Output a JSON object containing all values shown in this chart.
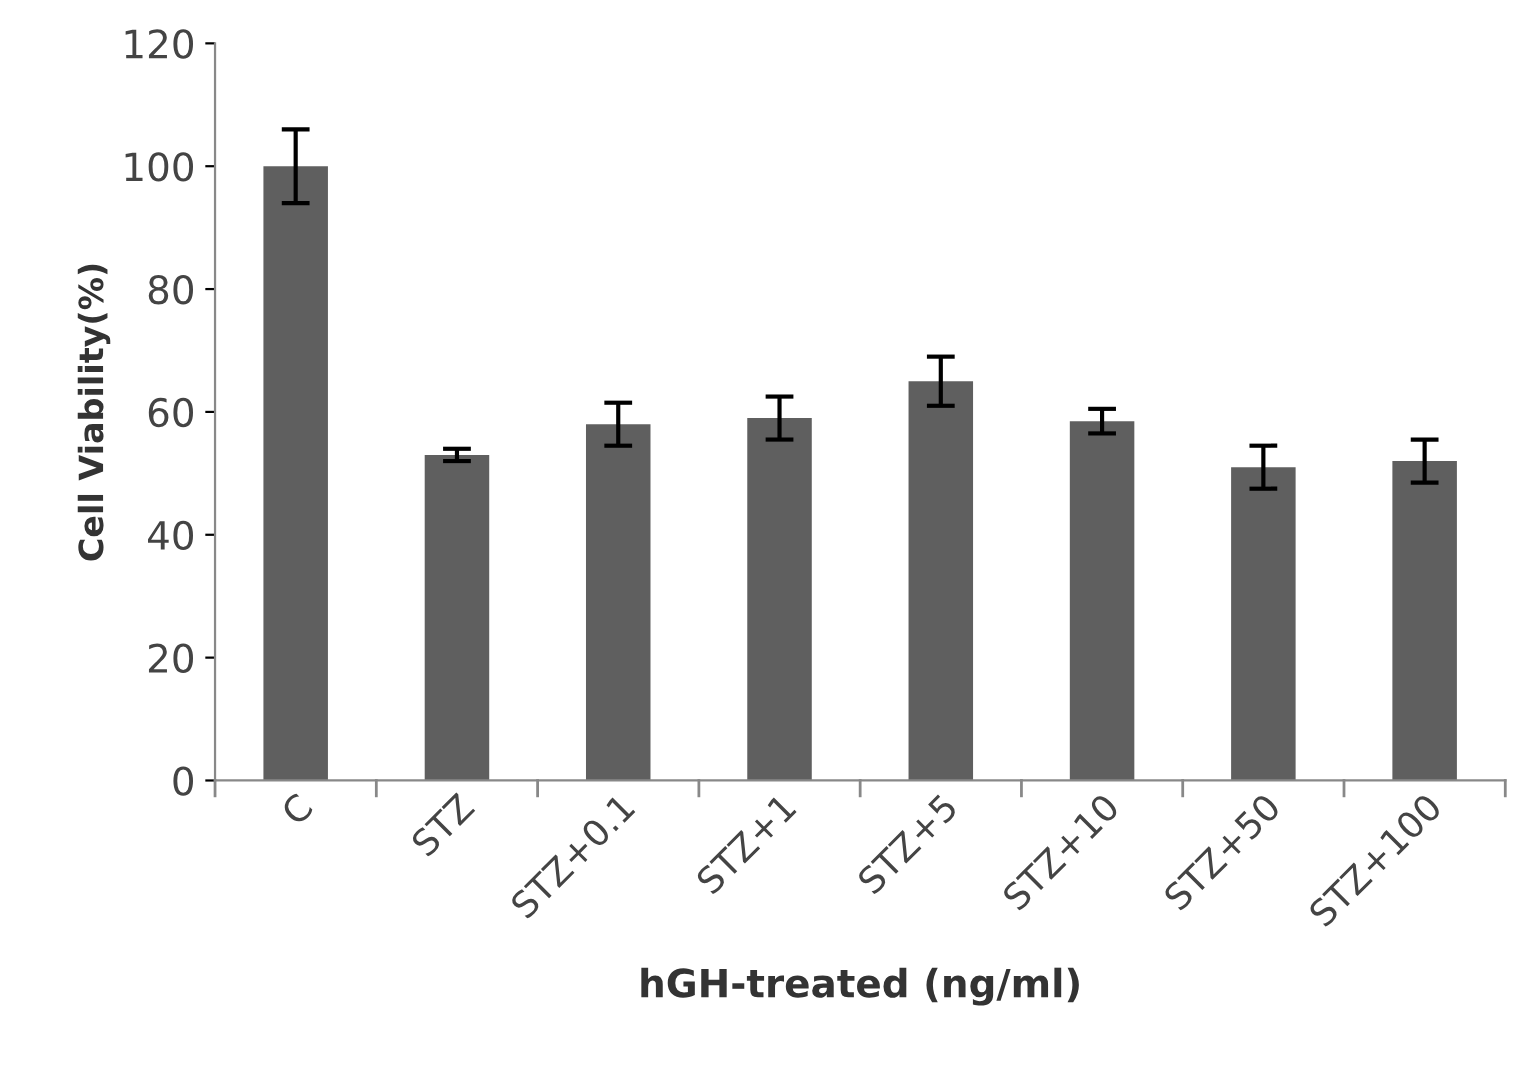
{
  "chart_data": {
    "type": "bar",
    "xlabel": "hGH-treated (ng/ml)",
    "ylabel": "Cell Viability(%)",
    "categories": [
      "C",
      "STZ",
      "STZ+0.1",
      "STZ+1",
      "STZ+5",
      "STZ+10",
      "STZ+50",
      "STZ+100"
    ],
    "values": [
      100,
      53,
      58,
      59,
      65,
      58.5,
      51,
      52
    ],
    "errors": [
      6,
      1,
      3.5,
      3.5,
      4,
      2,
      3.5,
      3.5
    ],
    "color": "#5f5f5f",
    "ylim": [
      0,
      120
    ],
    "yticks": [
      0,
      20,
      40,
      60,
      80,
      100,
      120
    ],
    "grid": false,
    "legend": false
  }
}
